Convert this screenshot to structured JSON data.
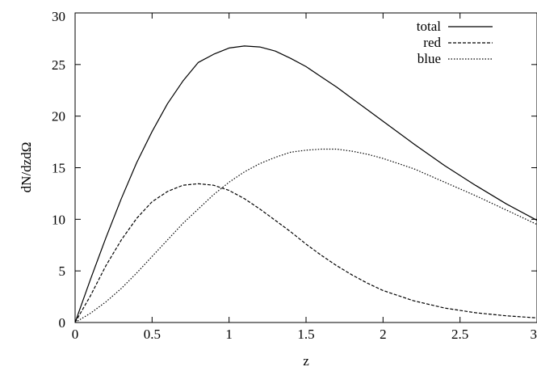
{
  "chart_data": {
    "type": "line",
    "title": "",
    "xlabel": "z",
    "ylabel": "dN/dzdΩ",
    "xlim": [
      0,
      3
    ],
    "ylim": [
      0,
      30
    ],
    "xticks": [
      0,
      0.5,
      1,
      1.5,
      2,
      2.5,
      3
    ],
    "xtick_labels": [
      "0",
      "0.5",
      "1",
      "1.5",
      "2",
      "2.5",
      "3"
    ],
    "yticks": [
      0,
      5,
      10,
      15,
      20,
      25,
      30
    ],
    "ytick_labels": [
      "0",
      "5",
      "10",
      "15",
      "20",
      "25",
      "30"
    ],
    "grid": false,
    "legend_position": "top-right",
    "series": [
      {
        "name": "total",
        "style": "solid",
        "x": [
          0,
          0.1,
          0.2,
          0.3,
          0.4,
          0.5,
          0.6,
          0.7,
          0.8,
          0.9,
          1.0,
          1.1,
          1.2,
          1.3,
          1.4,
          1.5,
          1.6,
          1.7,
          1.8,
          1.9,
          2.0,
          2.2,
          2.4,
          2.6,
          2.8,
          3.0
        ],
        "values": [
          0,
          4.2,
          8.2,
          12.0,
          15.5,
          18.5,
          21.2,
          23.4,
          25.2,
          26.0,
          26.6,
          26.8,
          26.7,
          26.3,
          25.6,
          24.8,
          23.8,
          22.8,
          21.7,
          20.6,
          19.5,
          17.3,
          15.2,
          13.3,
          11.5,
          9.9
        ]
      },
      {
        "name": "red",
        "style": "dashed",
        "x": [
          0,
          0.1,
          0.2,
          0.3,
          0.4,
          0.5,
          0.6,
          0.7,
          0.8,
          0.9,
          1.0,
          1.1,
          1.2,
          1.3,
          1.4,
          1.5,
          1.6,
          1.7,
          1.8,
          1.9,
          2.0,
          2.2,
          2.4,
          2.6,
          2.8,
          3.0
        ],
        "values": [
          0,
          2.6,
          5.5,
          8.0,
          10.1,
          11.7,
          12.7,
          13.3,
          13.45,
          13.3,
          12.8,
          12.0,
          11.0,
          9.9,
          8.8,
          7.6,
          6.5,
          5.5,
          4.6,
          3.8,
          3.1,
          2.1,
          1.4,
          0.95,
          0.65,
          0.45
        ]
      },
      {
        "name": "blue",
        "style": "dotted",
        "x": [
          0,
          0.1,
          0.2,
          0.3,
          0.4,
          0.5,
          0.6,
          0.7,
          0.8,
          0.9,
          1.0,
          1.1,
          1.2,
          1.3,
          1.4,
          1.5,
          1.6,
          1.7,
          1.8,
          1.9,
          2.0,
          2.2,
          2.4,
          2.6,
          2.8,
          3.0
        ],
        "values": [
          0,
          0.9,
          2.0,
          3.3,
          4.8,
          6.4,
          8.0,
          9.6,
          11.0,
          12.4,
          13.6,
          14.6,
          15.4,
          16.0,
          16.5,
          16.7,
          16.8,
          16.8,
          16.6,
          16.3,
          15.9,
          14.9,
          13.6,
          12.3,
          10.9,
          9.5
        ]
      }
    ]
  }
}
